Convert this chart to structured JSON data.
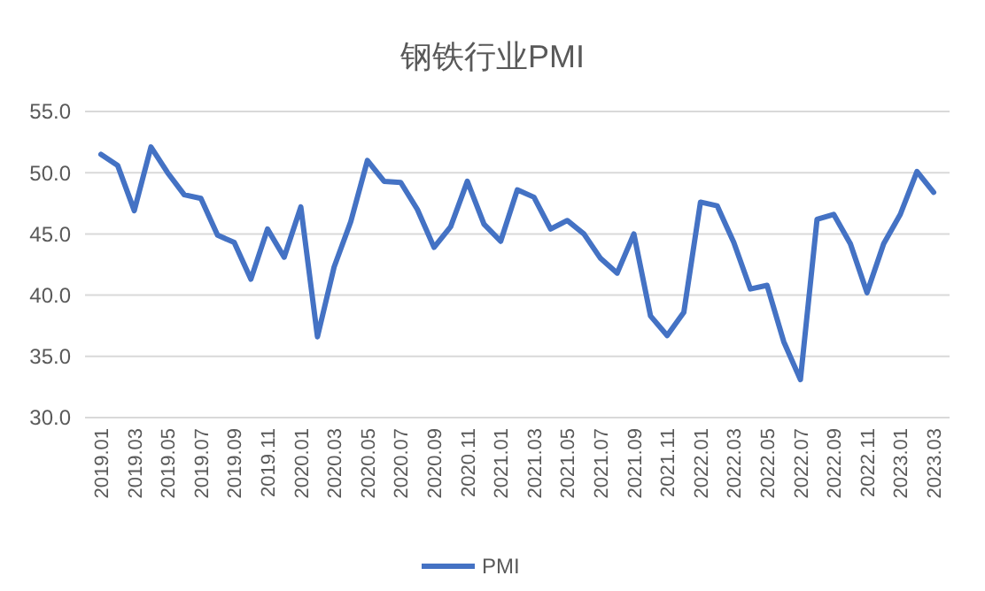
{
  "chart_data": {
    "type": "line",
    "title": "钢铁行业PMI",
    "categories": [
      "2019.01",
      null,
      "2019.03",
      null,
      "2019.05",
      null,
      "2019.07",
      null,
      "2019.09",
      null,
      "2019.11",
      null,
      "2020.01",
      null,
      "2020.03",
      null,
      "2020.05",
      null,
      "2020.07",
      null,
      "2020.09",
      null,
      "2020.11",
      null,
      "2021.01",
      null,
      "2021.03",
      null,
      "2021.05",
      null,
      "2021.07",
      null,
      "2021.09",
      null,
      "2021.11",
      null,
      "2022.01",
      null,
      "2022.03",
      null,
      "2022.05",
      null,
      "2022.07",
      null,
      "2022.09",
      null,
      "2022.11",
      null,
      "2023.01",
      null,
      "2023.03"
    ],
    "series": [
      {
        "name": "PMI",
        "color": "#4472c4",
        "values": [
          51.5,
          50.6,
          46.9,
          52.1,
          50.0,
          48.2,
          47.9,
          44.9,
          44.3,
          41.3,
          45.4,
          43.1,
          47.2,
          36.6,
          42.3,
          46.0,
          51.0,
          49.3,
          49.2,
          47.0,
          43.9,
          45.6,
          49.3,
          45.8,
          44.4,
          48.6,
          48.0,
          45.4,
          46.1,
          45.0,
          43.0,
          41.8,
          45.0,
          38.3,
          36.7,
          38.6,
          47.6,
          47.3,
          44.3,
          40.5,
          40.8,
          36.2,
          33.1,
          46.2,
          46.6,
          44.2,
          40.2,
          44.2,
          46.6,
          50.1,
          48.4
        ]
      }
    ],
    "ylim": [
      30,
      55
    ],
    "yticks": [
      {
        "value": 30,
        "label": "30.0"
      },
      {
        "value": 35,
        "label": "35.0"
      },
      {
        "value": 40,
        "label": "40.0"
      },
      {
        "value": 45,
        "label": "45.0"
      },
      {
        "value": 50,
        "label": "50.0"
      },
      {
        "value": 55,
        "label": "55.0"
      }
    ],
    "grid": "y",
    "legend": "bottom",
    "marker": "none",
    "line_style": "solid"
  }
}
